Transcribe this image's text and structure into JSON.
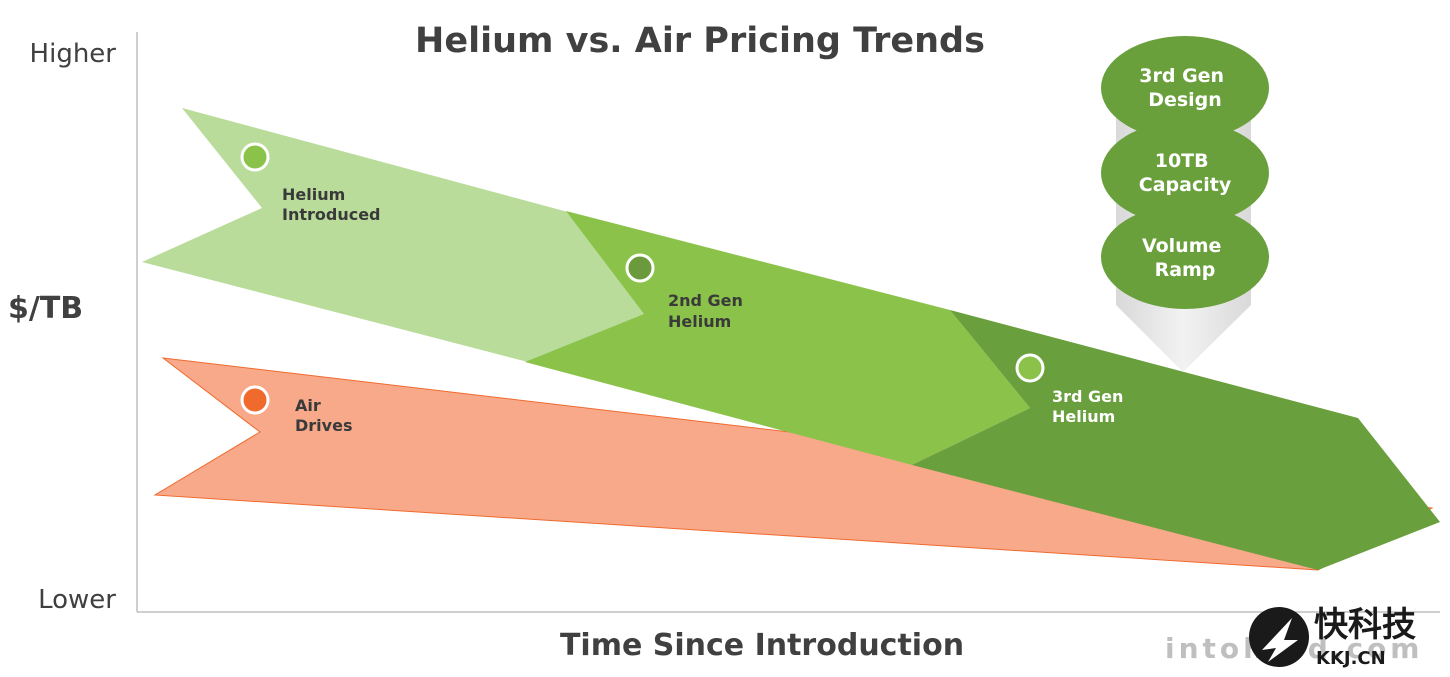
{
  "chart_data": {
    "type": "area",
    "title": "Helium vs. Air Pricing Trends",
    "xlabel": "Time Since Introduction",
    "ylabel": "$/TB",
    "y_top_label": "Higher",
    "y_bottom_label": "Lower",
    "series": [
      {
        "name": "Air Drives",
        "label_lines": [
          "Air",
          "Drives"
        ],
        "color": "#f8a98a",
        "marker_color": "#f06a2e"
      },
      {
        "name": "Helium Introduced",
        "label_lines": [
          "Helium",
          "Introduced"
        ],
        "color": "#b9dc9b",
        "marker_color": "#8bc34a"
      },
      {
        "name": "2nd Gen Helium",
        "label_lines": [
          "2nd Gen",
          "Helium"
        ],
        "color": "#8bc34a",
        "marker_color": "#6a9a3c"
      },
      {
        "name": "3rd Gen Helium",
        "label_lines": [
          "3rd Gen",
          "Helium"
        ],
        "color": "#6a9f3d",
        "marker_color": "#8bc34a"
      }
    ],
    "milestones": [
      [
        "3rd Gen",
        "Design"
      ],
      [
        "10TB",
        "Capacity"
      ],
      [
        "Volume",
        "Ramp"
      ]
    ],
    "grid": false,
    "legend": "none"
  },
  "watermark": {
    "site_text": "intohard.com",
    "brand_cn": "快科技",
    "brand_en": "KKJ.CN"
  }
}
